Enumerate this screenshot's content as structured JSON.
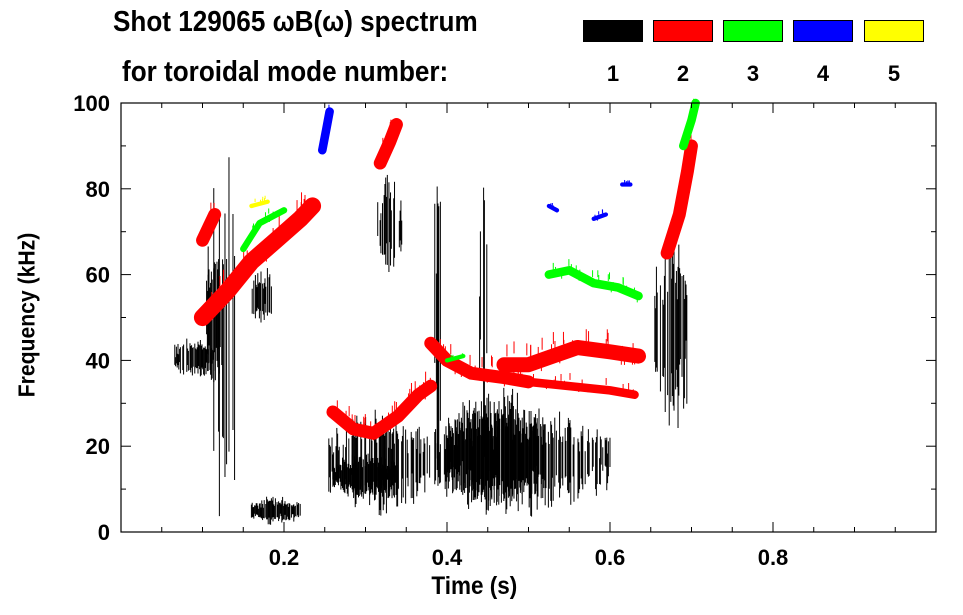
{
  "chart_data": {
    "type": "heatmap",
    "title": "Shot 129065 ωB(ω) spectrum",
    "subtitle": "for toroidal mode number:",
    "xlabel": "Time (s)",
    "ylabel": "Frequency (kHz)",
    "xlim": [
      0,
      1.0
    ],
    "ylim": [
      0,
      100
    ],
    "xticks": [
      0.2,
      0.4,
      0.6,
      0.8
    ],
    "xtick_labels": [
      "0.2",
      "0.4",
      "0.6",
      "0.8"
    ],
    "yticks": [
      0,
      20,
      40,
      60,
      80,
      100
    ],
    "ytick_labels": [
      "0",
      "20",
      "40",
      "60",
      "80",
      "100"
    ],
    "legend": [
      {
        "mode": "1",
        "color": "#000000"
      },
      {
        "mode": "2",
        "color": "#ff0000"
      },
      {
        "mode": "3",
        "color": "#00ff00"
      },
      {
        "mode": "4",
        "color": "#0000ff"
      },
      {
        "mode": "5",
        "color": "#ffff00"
      }
    ],
    "features": [
      {
        "mode": 1,
        "kind": "region",
        "t": [
          0.066,
          0.115
        ],
        "f": [
          36,
          45
        ],
        "density": 0.9
      },
      {
        "mode": 1,
        "kind": "region",
        "t": [
          0.105,
          0.145
        ],
        "f": [
          3,
          90
        ],
        "density": 0.35
      },
      {
        "mode": 1,
        "kind": "region",
        "t": [
          0.105,
          0.125
        ],
        "f": [
          35,
          65
        ],
        "density": 0.8
      },
      {
        "mode": 1,
        "kind": "region",
        "t": [
          0.16,
          0.22
        ],
        "f": [
          2,
          8
        ],
        "density": 0.9
      },
      {
        "mode": 1,
        "kind": "region",
        "t": [
          0.16,
          0.185
        ],
        "f": [
          48,
          62
        ],
        "density": 0.8
      },
      {
        "mode": 1,
        "kind": "region",
        "t": [
          0.255,
          0.38
        ],
        "f": [
          5,
          27
        ],
        "density": 0.6
      },
      {
        "mode": 1,
        "kind": "region",
        "t": [
          0.26,
          0.34
        ],
        "f": [
          8,
          18
        ],
        "density": 0.95
      },
      {
        "mode": 1,
        "kind": "region",
        "t": [
          0.315,
          0.345
        ],
        "f": [
          60,
          82
        ],
        "density": 0.8
      },
      {
        "mode": 1,
        "kind": "region",
        "t": [
          0.385,
          0.6
        ],
        "f": [
          5,
          28
        ],
        "density": 0.6
      },
      {
        "mode": 1,
        "kind": "region",
        "t": [
          0.4,
          0.52
        ],
        "f": [
          5,
          32
        ],
        "density": 0.95
      },
      {
        "mode": 1,
        "kind": "region",
        "t": [
          0.385,
          0.395
        ],
        "f": [
          10,
          92
        ],
        "density": 0.6
      },
      {
        "mode": 1,
        "kind": "region",
        "t": [
          0.44,
          0.45
        ],
        "f": [
          10,
          90
        ],
        "density": 0.6
      },
      {
        "mode": 1,
        "kind": "region",
        "t": [
          0.655,
          0.695
        ],
        "f": [
          24,
          70
        ],
        "density": 0.65
      },
      {
        "mode": 2,
        "kind": "trace",
        "points": [
          [
            0.1,
            50
          ],
          [
            0.13,
            56
          ],
          [
            0.16,
            63
          ],
          [
            0.19,
            68
          ],
          [
            0.22,
            73
          ],
          [
            0.235,
            76
          ]
        ],
        "width_khz": 4
      },
      {
        "mode": 2,
        "kind": "trace",
        "points": [
          [
            0.1,
            68
          ],
          [
            0.115,
            74
          ]
        ],
        "width_khz": 3
      },
      {
        "mode": 2,
        "kind": "trace",
        "points": [
          [
            0.26,
            28
          ],
          [
            0.285,
            24
          ],
          [
            0.31,
            23
          ],
          [
            0.34,
            27
          ],
          [
            0.365,
            32
          ],
          [
            0.38,
            34
          ]
        ],
        "width_khz": 3
      },
      {
        "mode": 2,
        "kind": "trace",
        "points": [
          [
            0.318,
            86
          ],
          [
            0.33,
            91
          ],
          [
            0.338,
            95
          ]
        ],
        "width_khz": 3
      },
      {
        "mode": 2,
        "kind": "trace",
        "points": [
          [
            0.38,
            44
          ],
          [
            0.4,
            40
          ],
          [
            0.43,
            37
          ],
          [
            0.47,
            36
          ],
          [
            0.5,
            35
          ]
        ],
        "width_khz": 3
      },
      {
        "mode": 2,
        "kind": "trace",
        "points": [
          [
            0.47,
            39
          ],
          [
            0.5,
            39
          ],
          [
            0.53,
            41
          ],
          [
            0.56,
            43
          ],
          [
            0.6,
            42
          ],
          [
            0.635,
            41
          ]
        ],
        "width_khz": 3.5
      },
      {
        "mode": 2,
        "kind": "trace",
        "points": [
          [
            0.5,
            35
          ],
          [
            0.55,
            34
          ],
          [
            0.6,
            33
          ],
          [
            0.63,
            32
          ]
        ],
        "width_khz": 2
      },
      {
        "mode": 2,
        "kind": "trace",
        "points": [
          [
            0.67,
            65
          ],
          [
            0.685,
            74
          ],
          [
            0.695,
            84
          ],
          [
            0.7,
            90
          ]
        ],
        "width_khz": 3
      },
      {
        "mode": 3,
        "kind": "trace",
        "points": [
          [
            0.525,
            60
          ],
          [
            0.55,
            61
          ],
          [
            0.58,
            58
          ],
          [
            0.61,
            57
          ],
          [
            0.635,
            55
          ]
        ],
        "width_khz": 2
      },
      {
        "mode": 3,
        "kind": "trace",
        "points": [
          [
            0.69,
            90
          ],
          [
            0.7,
            96
          ],
          [
            0.705,
            100
          ]
        ],
        "width_khz": 2
      },
      {
        "mode": 3,
        "kind": "trace",
        "points": [
          [
            0.15,
            66
          ],
          [
            0.17,
            72
          ],
          [
            0.2,
            75
          ]
        ],
        "width_khz": 1.5
      },
      {
        "mode": 3,
        "kind": "trace",
        "points": [
          [
            0.4,
            40
          ],
          [
            0.42,
            41
          ]
        ],
        "width_khz": 1
      },
      {
        "mode": 4,
        "kind": "trace",
        "points": [
          [
            0.247,
            89
          ],
          [
            0.252,
            94
          ],
          [
            0.256,
            98
          ]
        ],
        "width_khz": 2
      },
      {
        "mode": 4,
        "kind": "trace",
        "points": [
          [
            0.525,
            76
          ],
          [
            0.535,
            75
          ]
        ],
        "width_khz": 1
      },
      {
        "mode": 4,
        "kind": "trace",
        "points": [
          [
            0.58,
            73
          ],
          [
            0.595,
            74
          ]
        ],
        "width_khz": 1
      },
      {
        "mode": 4,
        "kind": "trace",
        "points": [
          [
            0.615,
            81
          ],
          [
            0.625,
            81
          ]
        ],
        "width_khz": 1
      },
      {
        "mode": 5,
        "kind": "trace",
        "points": [
          [
            0.16,
            76
          ],
          [
            0.18,
            77
          ]
        ],
        "width_khz": 1
      }
    ]
  }
}
